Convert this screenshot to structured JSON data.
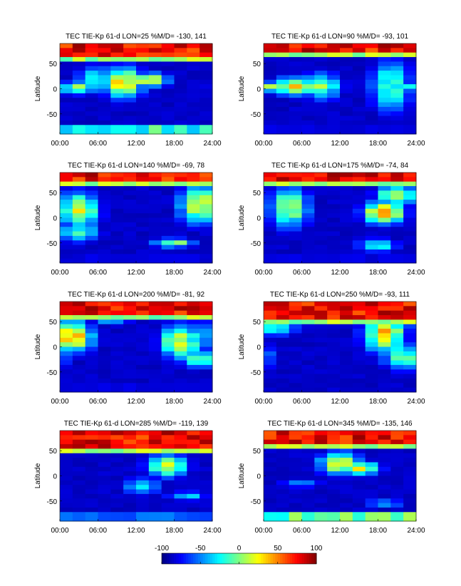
{
  "chart_data": [
    {
      "type": "heatmap",
      "title": "TEC TIE-Kp 61-d LON=25 %M/D= -130, 141",
      "ylabel": "Latitude",
      "xticks": [
        "00:00",
        "06:00",
        "12:00",
        "18:00",
        "24:00"
      ],
      "yticks": [
        "50",
        "0",
        "-50"
      ],
      "xlim": [
        0,
        24
      ],
      "ylim": [
        -90,
        90
      ],
      "hot_band_top": 85,
      "hot_band_bottom": 60,
      "blobs": [
        [
          10,
          12,
          35,
          0.65
        ],
        [
          14,
          17,
          15,
          0.7
        ],
        [
          3,
          2,
          -15,
          0.5
        ],
        [
          6,
          20,
          30,
          0.4
        ]
      ],
      "polar_south": 0.45
    },
    {
      "type": "heatmap",
      "title": "TEC TIE-Kp 61-d LON=90 %M/D= -93, 101",
      "ylabel": "Latitude",
      "xticks": [
        "00:00",
        "06:00",
        "12:00",
        "18:00",
        "24:00"
      ],
      "yticks": [
        "50",
        "0",
        "-50"
      ],
      "xlim": [
        0,
        24
      ],
      "ylim": [
        -90,
        90
      ],
      "hot_band_top": 85,
      "hot_band_bottom": 70,
      "blobs": [
        [
          5,
          5,
          20,
          0.7
        ],
        [
          1,
          4,
          10,
          0.6
        ],
        [
          9,
          5,
          30,
          0.5
        ],
        [
          20,
          5,
          -60,
          0.45
        ]
      ],
      "polar_south": 0.1
    },
    {
      "type": "heatmap",
      "title": "TEC TIE-Kp 61-d LON=140 %M/D= -69, 78",
      "ylabel": "Latitude",
      "xticks": [
        "00:00",
        "06:00",
        "12:00",
        "18:00",
        "24:00"
      ],
      "yticks": [
        "50",
        "0",
        "-50"
      ],
      "xlim": [
        0,
        24
      ],
      "ylim": [
        -90,
        90
      ],
      "hot_band_top": 85,
      "hot_band_bottom": 70,
      "blobs": [
        [
          3,
          15,
          40,
          0.6
        ],
        [
          22,
          25,
          40,
          0.65
        ],
        [
          18,
          -50,
          10,
          0.55
        ],
        [
          3,
          -30,
          20,
          0.45
        ]
      ],
      "polar_south": 0.1
    },
    {
      "type": "heatmap",
      "title": "TEC TIE-Kp 61-d LON=175 %M/D= -74, 84",
      "ylabel": "Latitude",
      "xticks": [
        "00:00",
        "06:00",
        "12:00",
        "18:00",
        "24:00"
      ],
      "yticks": [
        "50",
        "0",
        "-50"
      ],
      "xlim": [
        0,
        24
      ],
      "ylim": [
        -90,
        90
      ],
      "hot_band_top": 85,
      "hot_band_bottom": 70,
      "blobs": [
        [
          19,
          10,
          25,
          0.75
        ],
        [
          21,
          45,
          20,
          0.6
        ],
        [
          4,
          20,
          45,
          0.55
        ],
        [
          18,
          -55,
          15,
          0.4
        ]
      ],
      "polar_south": 0.1
    },
    {
      "type": "heatmap",
      "title": "TEC TIE-Kp 61-d LON=200 %M/D= -81, 92",
      "ylabel": "Latitude",
      "xticks": [
        "00:00",
        "06:00",
        "12:00",
        "18:00",
        "24:00"
      ],
      "yticks": [
        "50",
        "0",
        "-50"
      ],
      "xlim": [
        0,
        24
      ],
      "ylim": [
        -90,
        90
      ],
      "hot_band_top": 85,
      "hot_band_bottom": 65,
      "blobs": [
        [
          2,
          20,
          35,
          0.7
        ],
        [
          19,
          10,
          40,
          0.6
        ],
        [
          22,
          -25,
          20,
          0.45
        ],
        [
          8,
          55,
          10,
          0.4
        ]
      ],
      "polar_south": 0.1
    },
    {
      "type": "heatmap",
      "title": "TEC TIE-Kp 61-d LON=250 %M/D= -93, 111",
      "ylabel": "Latitude",
      "xticks": [
        "00:00",
        "06:00",
        "12:00",
        "18:00",
        "24:00"
      ],
      "yticks": [
        "50",
        "0",
        "-50"
      ],
      "xlim": [
        0,
        24
      ],
      "ylim": [
        -90,
        90
      ],
      "hot_band_top": 85,
      "hot_band_bottom": 58,
      "blobs": [
        [
          19,
          25,
          40,
          0.7
        ],
        [
          22,
          -20,
          30,
          0.5
        ],
        [
          2,
          40,
          20,
          0.45
        ]
      ],
      "polar_south": 0.05
    },
    {
      "type": "heatmap",
      "title": "TEC TIE-Kp 61-d LON=285 %M/D= -119, 139",
      "ylabel": "Latitude",
      "xticks": [
        "00:00",
        "06:00",
        "12:00",
        "18:00",
        "24:00"
      ],
      "yticks": [
        "50",
        "0",
        "-50"
      ],
      "xlim": [
        0,
        24
      ],
      "ylim": [
        -90,
        90
      ],
      "hot_band_top": 85,
      "hot_band_bottom": 55,
      "blobs": [
        [
          17,
          20,
          25,
          0.6
        ],
        [
          13,
          -20,
          20,
          0.35
        ],
        [
          20,
          -40,
          10,
          0.35
        ]
      ],
      "polar_south": 0.25
    },
    {
      "type": "heatmap",
      "title": "TEC TIE-Kp 61-d LON=345 %M/D= -135, 146",
      "ylabel": "Latitude",
      "xticks": [
        "00:00",
        "06:00",
        "12:00",
        "18:00",
        "24:00"
      ],
      "yticks": [
        "50",
        "0",
        "-50"
      ],
      "xlim": [
        0,
        24
      ],
      "ylim": [
        -90,
        90
      ],
      "hot_band_top": 85,
      "hot_band_bottom": 60,
      "blobs": [
        [
          12,
          25,
          25,
          0.65
        ],
        [
          15,
          15,
          15,
          0.6
        ],
        [
          6,
          -15,
          10,
          0.3
        ],
        [
          19,
          -55,
          10,
          0.3
        ]
      ],
      "polar_south": 0.5
    }
  ],
  "colorbar": {
    "ticks": [
      "-100",
      "-50",
      "0",
      "50",
      "100"
    ],
    "range": [
      -100,
      100
    ],
    "colormap": "jet"
  }
}
